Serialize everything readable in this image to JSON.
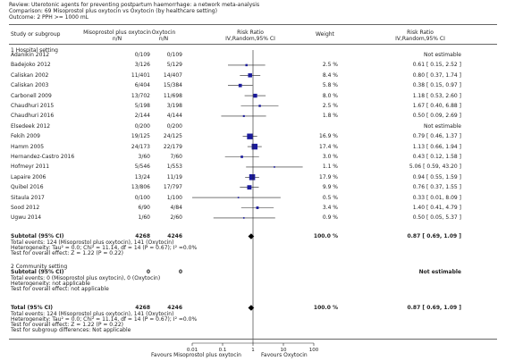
{
  "header": {
    "review": "Review:  Uterotonic agents for preventing postpartum haemorrhage: a network meta-analysis",
    "comparison": "Comparison:  69 Misoprostol plus oxytocin vs Oxytocin (by healthcare setting)",
    "outcome": "Outcome:  2 PPH >= 1000 mL"
  },
  "columns": {
    "study": "Study or subgroup",
    "exp": "Misoprostol plus oxytocin",
    "exp_sub": "n/N",
    "ctl": "Oxytocin",
    "ctl_sub": "n/N",
    "rr": "Risk Ratio",
    "rr_sub": "IV,Random,95% CI",
    "weight": "Weight",
    "rr2": "Risk Ratio",
    "rr2_sub": "IV,Random,95% CI"
  },
  "group1": {
    "title": "1 Hospital setting",
    "subtotal": {
      "label": "Subtotal (95% CI)",
      "exp": "4268",
      "ctl": "4246",
      "weight": "100.0 %",
      "ci": "0.87 [ 0.69, 1.09 ]"
    },
    "events": "Total events: 124 (Misoprostol plus oxytocin), 141 (Oxytocin)",
    "het": "Heterogeneity: Tau² = 0.0; Chi² = 11.14, df = 14 (P = 0.67); I² =0.0%",
    "test": "Test for overall effect: Z = 1.22 (P = 0.22)"
  },
  "group2": {
    "title": "2 Community setting",
    "subtotal": {
      "label": "Subtotal (95% CI)",
      "exp": "0",
      "ctl": "0",
      "ci": "Not estimable"
    },
    "events": "Total events: 0 (Misoprostol plus oxytocin), 0 (Oxytocin)",
    "het": "Heterogeneity: not applicable",
    "test": "Test for overall effect: not applicable"
  },
  "total": {
    "label": "Total (95% CI)",
    "exp": "4268",
    "ctl": "4246",
    "weight": "100.0 %",
    "ci": "0.87 [ 0.69, 1.09 ]",
    "events": "Total events: 124 (Misoprostol plus oxytocin), 141 (Oxytocin)",
    "het": "Heterogeneity: Tau² = 0.0; Chi² = 11.14, df = 14 (P = 0.67); I² =0.0%",
    "test": "Test for overall effect: Z = 1.22 (P = 0.22)",
    "subgroup": "Test for subgroup differences: Not applicable"
  },
  "footer": {
    "favours_left": "Favours Misoprostol plus oxytocin",
    "favours_right": "Favours Oxytocin"
  },
  "colors": {
    "marker": "#1a1a9c",
    "line": "#222222",
    "rule": "#666666"
  },
  "chart_data": {
    "type": "forest",
    "x_scale": "log",
    "xlim": [
      0.01,
      100
    ],
    "ticks": [
      "0.01",
      "0.1",
      "1",
      "10",
      "100"
    ],
    "studies": [
      {
        "name": "Adanikin 2012",
        "exp": "0/109",
        "ctl": "0/109",
        "weight": "",
        "ci": "Not estimable",
        "rr": null,
        "lo": null,
        "hi": null
      },
      {
        "name": "Badejoko 2012",
        "exp": "3/126",
        "ctl": "5/129",
        "weight": "2.5 %",
        "ci": "0.61 [ 0.15, 2.52 ]",
        "rr": 0.61,
        "lo": 0.15,
        "hi": 2.52
      },
      {
        "name": "Caliskan 2002",
        "exp": "11/401",
        "ctl": "14/407",
        "weight": "8.4 %",
        "ci": "0.80 [ 0.37, 1.74 ]",
        "rr": 0.8,
        "lo": 0.37,
        "hi": 1.74
      },
      {
        "name": "Caliskan 2003",
        "exp": "6/404",
        "ctl": "15/384",
        "weight": "5.8 %",
        "ci": "0.38 [ 0.15, 0.97 ]",
        "rr": 0.38,
        "lo": 0.15,
        "hi": 0.97
      },
      {
        "name": "Carbonell 2009",
        "exp": "13/702",
        "ctl": "11/698",
        "weight": "8.0 %",
        "ci": "1.18 [ 0.53, 2.60 ]",
        "rr": 1.18,
        "lo": 0.53,
        "hi": 2.6
      },
      {
        "name": "Chaudhuri 2015",
        "exp": "5/198",
        "ctl": "3/198",
        "weight": "2.5 %",
        "ci": "1.67 [ 0.40, 6.88 ]",
        "rr": 1.67,
        "lo": 0.4,
        "hi": 6.88
      },
      {
        "name": "Chaudhuri 2016",
        "exp": "2/144",
        "ctl": "4/144",
        "weight": "1.8 %",
        "ci": "0.50 [ 0.09, 2.69 ]",
        "rr": 0.5,
        "lo": 0.09,
        "hi": 2.69
      },
      {
        "name": "Elsedeek 2012",
        "exp": "0/200",
        "ctl": "0/200",
        "weight": "",
        "ci": "Not estimable",
        "rr": null,
        "lo": null,
        "hi": null
      },
      {
        "name": "Fekih 2009",
        "exp": "19/125",
        "ctl": "24/125",
        "weight": "16.9 %",
        "ci": "0.79 [ 0.46, 1.37 ]",
        "rr": 0.79,
        "lo": 0.46,
        "hi": 1.37
      },
      {
        "name": "Hamm 2005",
        "exp": "24/173",
        "ctl": "22/179",
        "weight": "17.4 %",
        "ci": "1.13 [ 0.66, 1.94 ]",
        "rr": 1.13,
        "lo": 0.66,
        "hi": 1.94
      },
      {
        "name": "Hernandez-Castro 2016",
        "exp": "3/60",
        "ctl": "7/60",
        "weight": "3.0 %",
        "ci": "0.43 [ 0.12, 1.58 ]",
        "rr": 0.43,
        "lo": 0.12,
        "hi": 1.58
      },
      {
        "name": "Hofmeyr 2011",
        "exp": "5/546",
        "ctl": "1/553",
        "weight": "1.1 %",
        "ci": "5.06 [ 0.59, 43.20 ]",
        "rr": 5.06,
        "lo": 0.59,
        "hi": 43.2
      },
      {
        "name": "Lapaire 2006",
        "exp": "13/24",
        "ctl": "11/19",
        "weight": "17.9 %",
        "ci": "0.94 [ 0.55, 1.59 ]",
        "rr": 0.94,
        "lo": 0.55,
        "hi": 1.59
      },
      {
        "name": "Quibel 2016",
        "exp": "13/806",
        "ctl": "17/797",
        "weight": "9.9 %",
        "ci": "0.76 [ 0.37, 1.55 ]",
        "rr": 0.76,
        "lo": 0.37,
        "hi": 1.55
      },
      {
        "name": "Sitaula 2017",
        "exp": "0/100",
        "ctl": "1/100",
        "weight": "0.5 %",
        "ci": "0.33 [ 0.01, 8.09 ]",
        "rr": 0.33,
        "lo": 0.01,
        "hi": 8.09
      },
      {
        "name": "Sood 2012",
        "exp": "6/90",
        "ctl": "4/84",
        "weight": "3.4 %",
        "ci": "1.40 [ 0.41, 4.79 ]",
        "rr": 1.4,
        "lo": 0.41,
        "hi": 4.79
      },
      {
        "name": "Ugwu 2014",
        "exp": "1/60",
        "ctl": "2/60",
        "weight": "0.9 %",
        "ci": "0.50 [ 0.05, 5.37 ]",
        "rr": 0.5,
        "lo": 0.05,
        "hi": 5.37
      }
    ],
    "subtotal_diamond": {
      "rr": 0.87,
      "lo": 0.69,
      "hi": 1.09
    },
    "total_diamond": {
      "rr": 0.87,
      "lo": 0.69,
      "hi": 1.09
    }
  }
}
